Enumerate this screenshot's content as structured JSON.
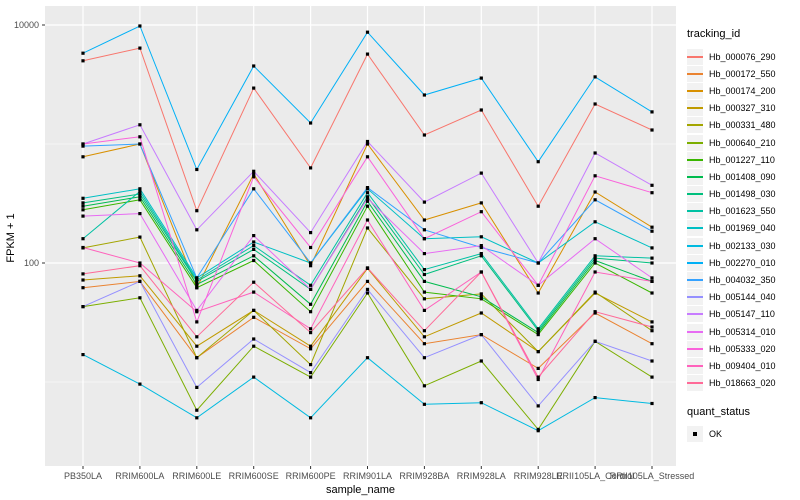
{
  "chart_data": {
    "type": "line",
    "title": "",
    "xlabel": "sample_name",
    "ylabel": "FPKM + 1",
    "y_scale": "log10",
    "grid": true,
    "legend_position": "right",
    "y_ticks": [
      {
        "value": 10000,
        "label": "10000"
      },
      {
        "value": 100,
        "label": "100"
      }
    ],
    "y_gridlines_major": [
      100,
      10000
    ],
    "y_gridlines_minor": [
      10,
      1000
    ],
    "point_shape": "filled-square",
    "point_color": "#000000",
    "panel_color": "#EBEBEB",
    "x_categories": [
      "PB350LA",
      "RRIM600LA",
      "RRIM600LE",
      "RRIM600SE",
      "RRIM600PE",
      "RRIM901LA",
      "RRIM928BA",
      "RRIM928LA",
      "RRIM928LE",
      "RRII105LA_Control",
      "RRII105LA_Stressed"
    ],
    "series": [
      {
        "name": "Hb_000076_290",
        "color": "#F8766D",
        "values": [
          5000,
          6400,
          275,
          2950,
          630,
          5700,
          1190,
          1930,
          300,
          2170,
          1310
        ]
      },
      {
        "name": "Hb_000172_550",
        "color": "#EA8331",
        "values": [
          62,
          70,
          16,
          35,
          19,
          70,
          21,
          25,
          13,
          38,
          21
        ]
      },
      {
        "name": "Hb_000174_200",
        "color": "#D89000",
        "values": [
          780,
          1000,
          62,
          560,
          95,
          1000,
          230,
          320,
          56,
          395,
          200
        ]
      },
      {
        "name": "Hb_000327_310",
        "color": "#C09B00",
        "values": [
          72,
          78,
          20,
          40,
          20,
          90,
          24,
          38,
          18,
          56,
          32
        ]
      },
      {
        "name": "Hb_000331_480",
        "color": "#A3A500",
        "values": [
          134,
          165,
          16,
          40,
          14,
          197,
          50,
          55,
          18,
          57,
          27
        ]
      },
      {
        "name": "Hb_000640_210",
        "color": "#7CAE00",
        "values": [
          43,
          51,
          5.8,
          20,
          11,
          56,
          9.3,
          15,
          4,
          22,
          11
        ]
      },
      {
        "name": "Hb_001227_110",
        "color": "#39B600",
        "values": [
          280,
          340,
          62,
          105,
          39,
          300,
          57,
          50,
          25,
          100,
          56
        ]
      },
      {
        "name": "Hb_001408_090",
        "color": "#00BB4E",
        "values": [
          300,
          360,
          66,
          115,
          45,
          330,
          70,
          52,
          26,
          105,
          70
        ]
      },
      {
        "name": "Hb_001498_030",
        "color": "#00BF7D",
        "values": [
          320,
          380,
          70,
          130,
          60,
          360,
          80,
          115,
          27,
          110,
          100
        ]
      },
      {
        "name": "Hb_001623_550",
        "color": "#00C1A3",
        "values": [
          160,
          400,
          72,
          140,
          65,
          390,
          88,
          120,
          28,
          115,
          110
        ]
      },
      {
        "name": "Hb_001969_040",
        "color": "#00BFC4",
        "values": [
          350,
          420,
          75,
          150,
          100,
          420,
          160,
          166,
          100,
          222,
          134
        ]
      },
      {
        "name": "Hb_002133_030",
        "color": "#00BAE0",
        "values": [
          17,
          9.6,
          5,
          11,
          5,
          16,
          6.5,
          6.7,
          3.9,
          7.4,
          6.6
        ]
      },
      {
        "name": "Hb_002270_010",
        "color": "#00B0F6",
        "values": [
          5800,
          9800,
          610,
          4520,
          1500,
          8700,
          2580,
          3580,
          710,
          3660,
          1860
        ]
      },
      {
        "name": "Hb_004032_350",
        "color": "#35A2FF",
        "values": [
          960,
          1000,
          75,
          420,
          100,
          430,
          190,
          135,
          100,
          340,
          185
        ]
      },
      {
        "name": "Hb_005144_040",
        "color": "#9590FF",
        "values": [
          43,
          70,
          9,
          23,
          12,
          60,
          16,
          25,
          6.3,
          22,
          15
        ]
      },
      {
        "name": "Hb_005147_110",
        "color": "#C77CFF",
        "values": [
          1000,
          1450,
          190,
          590,
          180,
          1050,
          325,
          570,
          100,
          840,
          450
        ]
      },
      {
        "name": "Hb_005314_010",
        "color": "#E76BF3",
        "values": [
          248,
          260,
          40,
          170,
          60,
          350,
          120,
          140,
          65,
          160,
          75
        ]
      },
      {
        "name": "Hb_005333_020",
        "color": "#FA62DB",
        "values": [
          1000,
          1150,
          32,
          530,
          135,
          780,
          160,
          270,
          65,
          540,
          390
        ]
      },
      {
        "name": "Hb_009404_010",
        "color": "#FF62BC",
        "values": [
          135,
          100,
          39,
          57,
          28,
          230,
          40,
          84,
          10.5,
          84,
          70
        ]
      },
      {
        "name": "Hb_018663_020",
        "color": "#FF6A98",
        "values": [
          81,
          95,
          24,
          69,
          26,
          91,
          27,
          84,
          11,
          39,
          29
        ]
      }
    ],
    "legend": {
      "tracking_title": "tracking_id",
      "quant_title": "quant_status",
      "quant_label": "OK"
    }
  }
}
